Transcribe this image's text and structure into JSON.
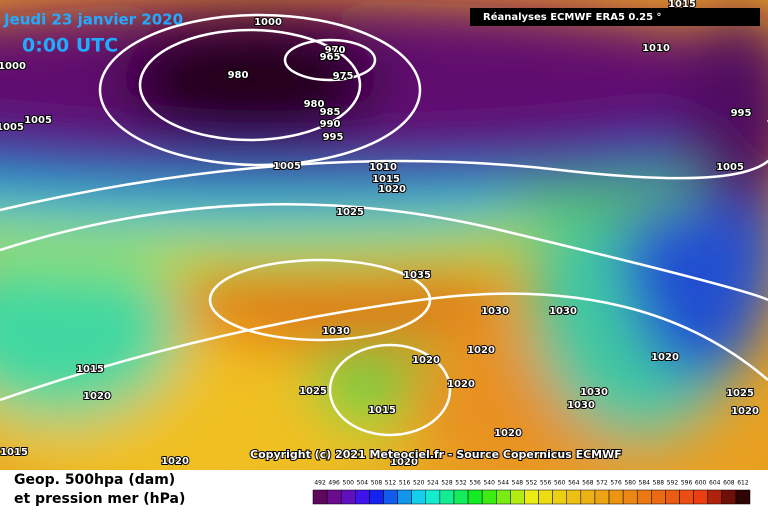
{
  "header": {
    "title": "Jeudi 23 janvier 2020",
    "time": "0:00 UTC",
    "source": "Réanalyses ECMWF ERA5 0.25 °"
  },
  "map": {
    "isobar_labels": [
      "1000",
      "1000",
      "980",
      "970",
      "965",
      "975",
      "980",
      "985",
      "990",
      "995",
      "1005",
      "1005",
      "1005",
      "1010",
      "1015",
      "1020",
      "1025",
      "1035",
      "1030",
      "1030",
      "1030",
      "1020",
      "1020",
      "1020",
      "1015",
      "1020",
      "1025",
      "1015",
      "1030",
      "1030",
      "1020",
      "1020",
      "1020",
      "1015",
      "1020",
      "1025",
      "1020",
      "1010",
      "1015",
      "995",
      "1005"
    ],
    "copyright": "Copyright (c) 2021 Meteociel.fr - Source Copernicus ECMWF"
  },
  "footer": {
    "line1": "Geop. 500hpa (dam)",
    "line2": "et pression mer (hPa)",
    "scale": [
      492,
      496,
      500,
      504,
      508,
      512,
      516,
      520,
      524,
      528,
      532,
      536,
      540,
      544,
      548,
      552,
      556,
      560,
      564,
      568,
      572,
      576,
      580,
      584,
      588,
      592,
      596,
      600,
      604,
      608,
      612
    ]
  }
}
